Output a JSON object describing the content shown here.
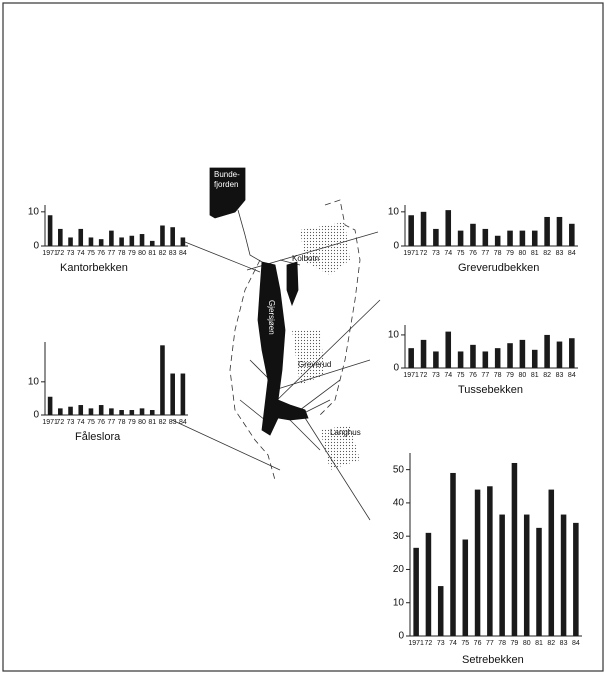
{
  "chart_data": [
    {
      "type": "bar",
      "title": "Kantorbekken",
      "categories": [
        "1971",
        "72",
        "73",
        "74",
        "75",
        "76",
        "77",
        "78",
        "79",
        "80",
        "81",
        "82",
        "83",
        "84"
      ],
      "values": [
        9,
        5,
        2.5,
        5,
        2.5,
        2,
        4.5,
        2.5,
        3,
        3.5,
        1.5,
        6,
        5.5,
        2.5
      ],
      "color": "#1a1a1a",
      "ylim": [
        0,
        12
      ],
      "yticks": [
        0,
        10
      ]
    },
    {
      "type": "bar",
      "title": "Greverudbekken",
      "categories": [
        "1971",
        "72",
        "73",
        "74",
        "75",
        "76",
        "77",
        "78",
        "79",
        "80",
        "81",
        "82",
        "83",
        "84"
      ],
      "values": [
        9,
        10,
        5,
        10.5,
        4.5,
        6.5,
        5,
        3,
        4.5,
        4.5,
        4.5,
        8.5,
        8.5,
        6.5
      ],
      "color": "#1a1a1a",
      "ylim": [
        0,
        12
      ],
      "yticks": [
        0,
        10
      ]
    },
    {
      "type": "bar",
      "title": "Tussebekken",
      "categories": [
        "1971",
        "72",
        "73",
        "74",
        "75",
        "76",
        "77",
        "78",
        "79",
        "80",
        "81",
        "82",
        "83",
        "84"
      ],
      "values": [
        6,
        8.5,
        5,
        11,
        5,
        7,
        5,
        6,
        7.5,
        8.5,
        5.5,
        10,
        8,
        9
      ],
      "color": "#1a1a1a",
      "ylim": [
        0,
        13
      ],
      "yticks": [
        0,
        10
      ]
    },
    {
      "type": "bar",
      "title": "Fåleslora",
      "categories": [
        "1971",
        "72",
        "73",
        "74",
        "75",
        "76",
        "77",
        "78",
        "79",
        "80",
        "81",
        "82",
        "83",
        "84"
      ],
      "values": [
        5.5,
        2,
        2.5,
        3,
        2,
        3,
        2,
        1.5,
        1.5,
        2,
        1.5,
        21,
        12.5,
        12.5
      ],
      "color": "#1a1a1a",
      "ylim": [
        0,
        22
      ],
      "yticks": [
        0,
        10
      ]
    },
    {
      "type": "bar",
      "title": "Setrebekken",
      "categories": [
        "1971",
        "72",
        "73",
        "74",
        "75",
        "76",
        "77",
        "78",
        "79",
        "80",
        "81",
        "82",
        "83",
        "84"
      ],
      "values": [
        26.5,
        31,
        15,
        49,
        29,
        44,
        45,
        36.5,
        52,
        36.5,
        32.5,
        44,
        36.5,
        34
      ],
      "color": "#1a1a1a",
      "ylim": [
        0,
        55
      ],
      "yticks": [
        0,
        10,
        20,
        30,
        40,
        50
      ]
    }
  ],
  "map": {
    "labels": [
      "Bunde-",
      "fjorden",
      "Kolbotn",
      "Gjersjøen",
      "Greverud",
      "Langhus"
    ]
  }
}
